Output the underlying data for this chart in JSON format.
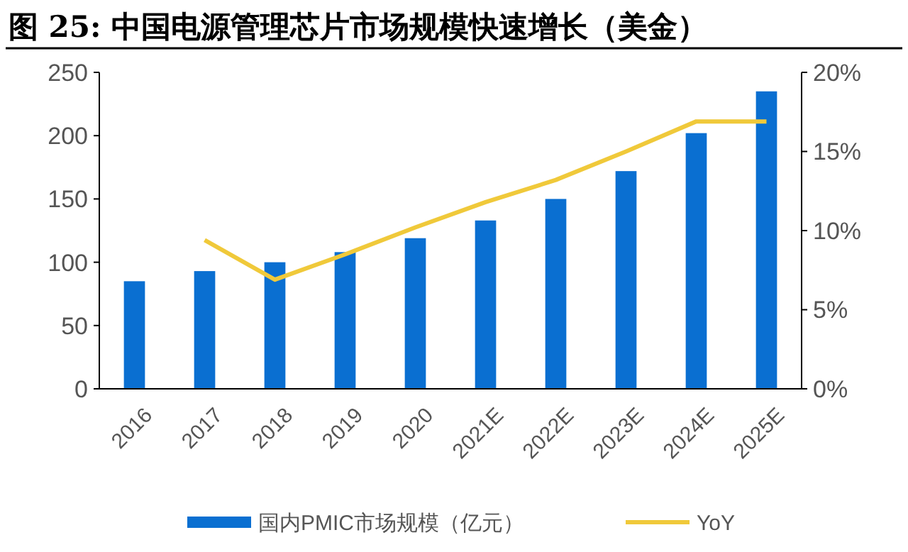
{
  "chart_data": {
    "type": "bar",
    "title": "图 25:  中国电源管理芯片市场规模快速增长（美金）",
    "categories": [
      "2016",
      "2017",
      "2018",
      "2019",
      "2020",
      "2021E",
      "2022E",
      "2023E",
      "2024E",
      "2025E"
    ],
    "series": [
      {
        "name": "国内PMIC市场规模（亿元）",
        "color": "#0a6fd1",
        "values": [
          85,
          93,
          100,
          108,
          119,
          133,
          150,
          172,
          202,
          235
        ]
      },
      {
        "name": "YoY",
        "type": "line",
        "axis": "y2",
        "color": "#f0c93a",
        "values": [
          null,
          9.4,
          6.9,
          8.5,
          10.2,
          11.8,
          13.2,
          15.0,
          16.9,
          16.9
        ]
      }
    ],
    "ylim": [
      0,
      250
    ],
    "yticks": [
      0,
      50,
      100,
      150,
      200,
      250
    ],
    "y2lim": [
      0,
      20
    ],
    "y2ticks": [
      {
        "value": 0,
        "label": "0%"
      },
      {
        "value": 5,
        "label": "5%"
      },
      {
        "value": 10,
        "label": "10%"
      },
      {
        "value": 15,
        "label": "15%"
      },
      {
        "value": 20,
        "label": "20%"
      }
    ],
    "grid": false,
    "legend": "bottom"
  }
}
